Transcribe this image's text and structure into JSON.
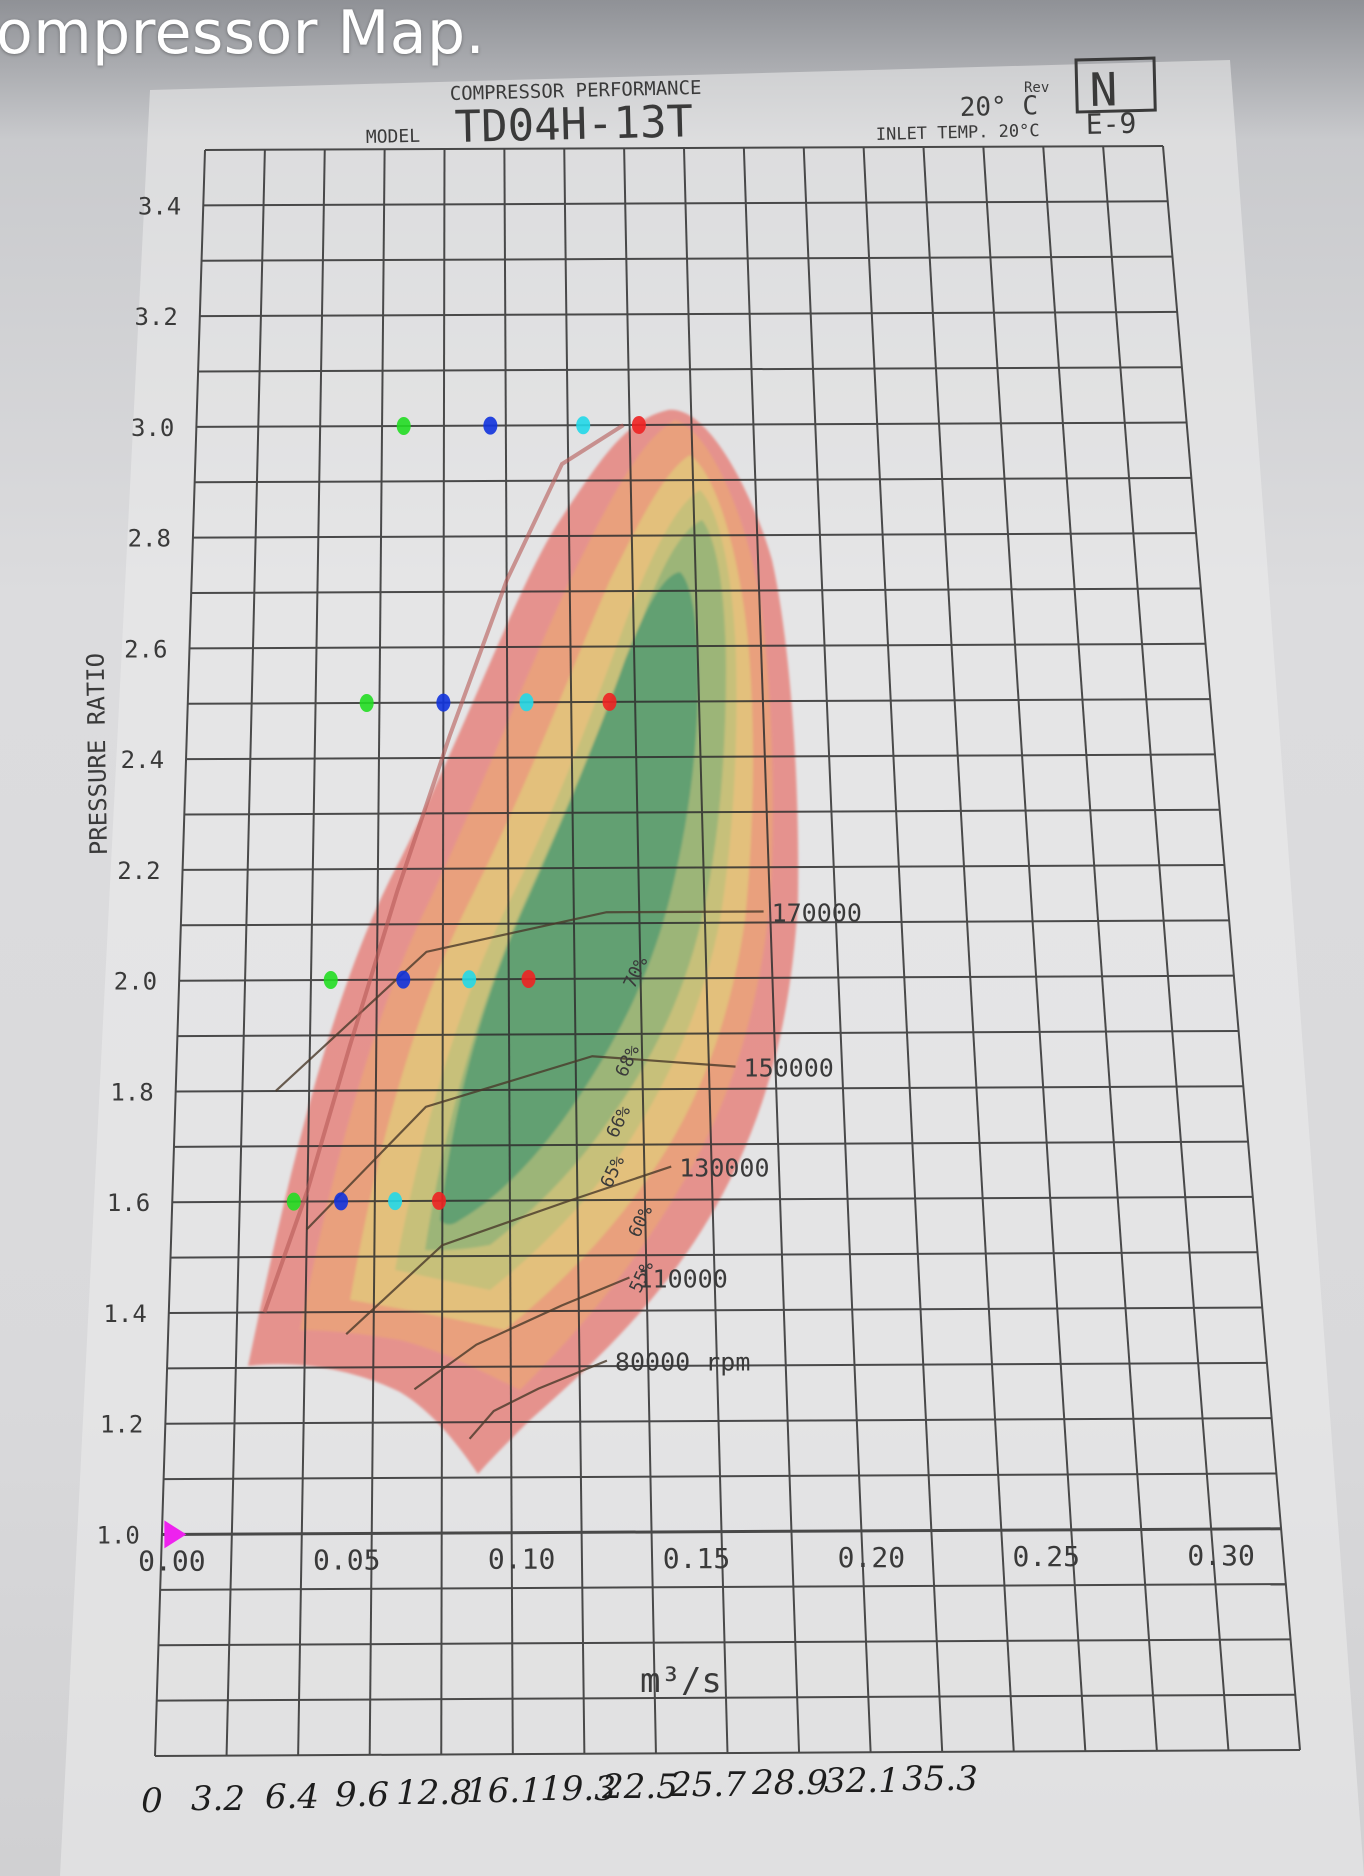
{
  "video_title": "ompressor Map.",
  "chart_data": {
    "type": "line",
    "title": "COMPRESSOR PERFORMANCE",
    "model_label": "MODEL",
    "model": "TD04H-13T",
    "header_right": {
      "rev": "Rev",
      "temp": "20° C",
      "inlet": "INLET TEMP. 20°C",
      "box_letter": "N",
      "code": "E-9"
    },
    "xlabel": "m³/s",
    "ylabel": "PRESSURE RATIO",
    "xlim": [
      0.0,
      0.32
    ],
    "ylim": [
      1.0,
      3.5
    ],
    "x_tick_labels": [
      "0.00",
      "0.05",
      "0.10",
      "0.15",
      "0.20",
      "0.25",
      "0.30"
    ],
    "y_tick_labels": [
      "1.0",
      "1.2",
      "1.4",
      "1.6",
      "1.8",
      "2.0",
      "2.2",
      "2.4",
      "2.6",
      "2.8",
      "3.0",
      "3.2",
      "3.4"
    ],
    "grid": true,
    "speed_lines": [
      {
        "label": "80000 rpm",
        "points": [
          [
            0.088,
            1.17
          ],
          [
            0.095,
            1.22
          ],
          [
            0.108,
            1.26
          ],
          [
            0.128,
            1.31
          ]
        ]
      },
      {
        "label": "110000",
        "points": [
          [
            0.072,
            1.26
          ],
          [
            0.09,
            1.34
          ],
          [
            0.115,
            1.41
          ],
          [
            0.135,
            1.46
          ]
        ]
      },
      {
        "label": "130000",
        "points": [
          [
            0.052,
            1.36
          ],
          [
            0.08,
            1.52
          ],
          [
            0.118,
            1.6
          ],
          [
            0.148,
            1.66
          ]
        ]
      },
      {
        "label": "150000",
        "points": [
          [
            0.04,
            1.55
          ],
          [
            0.075,
            1.77
          ],
          [
            0.125,
            1.86
          ],
          [
            0.168,
            1.84
          ]
        ]
      },
      {
        "label": "170000",
        "points": [
          [
            0.03,
            1.8
          ],
          [
            0.075,
            2.05
          ],
          [
            0.13,
            2.12
          ],
          [
            0.178,
            2.12
          ]
        ]
      }
    ],
    "efficiency_labels": [
      "70%",
      "68%",
      "66%",
      "65%",
      "60%",
      "55%"
    ],
    "annotation_points": {
      "pr_1_6": [
        0.036,
        0.05,
        0.066,
        0.079
      ],
      "pr_2_0": [
        0.046,
        0.068,
        0.088,
        0.106
      ],
      "pr_2_5": [
        0.056,
        0.08,
        0.106,
        0.132
      ],
      "pr_3_0": [
        0.067,
        0.095,
        0.125,
        0.143
      ],
      "origin": [
        0.003,
        1.0
      ]
    },
    "handwritten_scale": [
      "0",
      "3.2",
      "6.4",
      "9.6",
      "12.8",
      "16.1",
      "19.3",
      "22.5",
      "25.7",
      "28.9",
      "32.1",
      "35.3"
    ]
  }
}
